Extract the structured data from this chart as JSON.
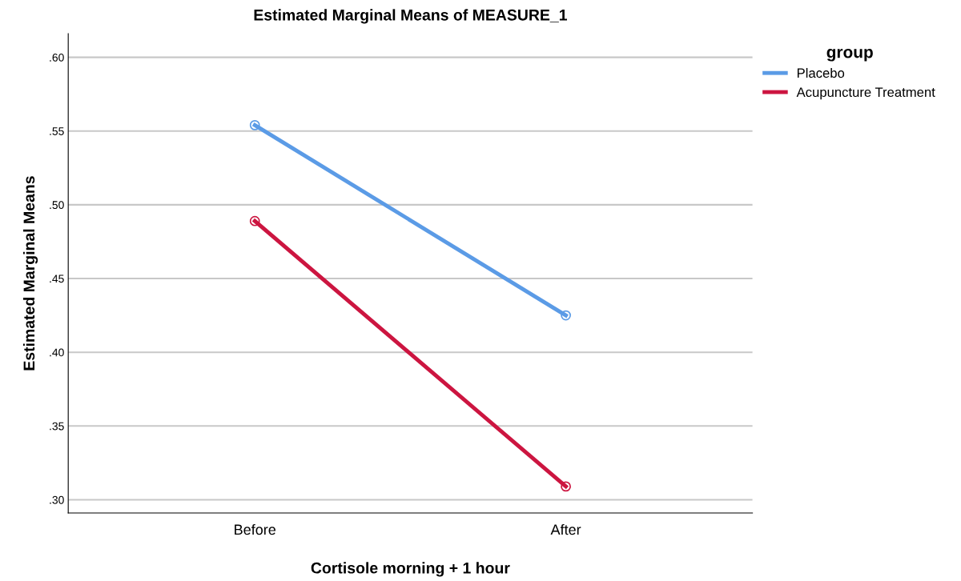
{
  "chart_data": {
    "type": "line",
    "title": "Estimated Marginal Means of MEASURE_1",
    "xlabel": "Cortisole morning + 1 hour",
    "ylabel": "Estimated Marginal Means",
    "legend_title": "group",
    "categories": [
      "Before",
      "After"
    ],
    "series": [
      {
        "name": "Placebo",
        "color": "#5b9be6",
        "values": [
          0.554,
          0.425
        ]
      },
      {
        "name": "Acupuncture Treatment",
        "color": "#cc1540",
        "values": [
          0.489,
          0.309
        ]
      }
    ],
    "ylim": [
      0.291,
      0.616
    ],
    "yticks": [
      {
        "value": 0.3,
        "label": ".30"
      },
      {
        "value": 0.35,
        "label": ".35"
      },
      {
        "value": 0.4,
        "label": ".40"
      },
      {
        "value": 0.45,
        "label": ".45"
      },
      {
        "value": 0.5,
        "label": ".50"
      },
      {
        "value": 0.55,
        "label": ".55"
      },
      {
        "value": 0.6,
        "label": ".60"
      }
    ],
    "grid": "y",
    "legend": "top right",
    "marker": "circle",
    "line_style": "solid"
  }
}
